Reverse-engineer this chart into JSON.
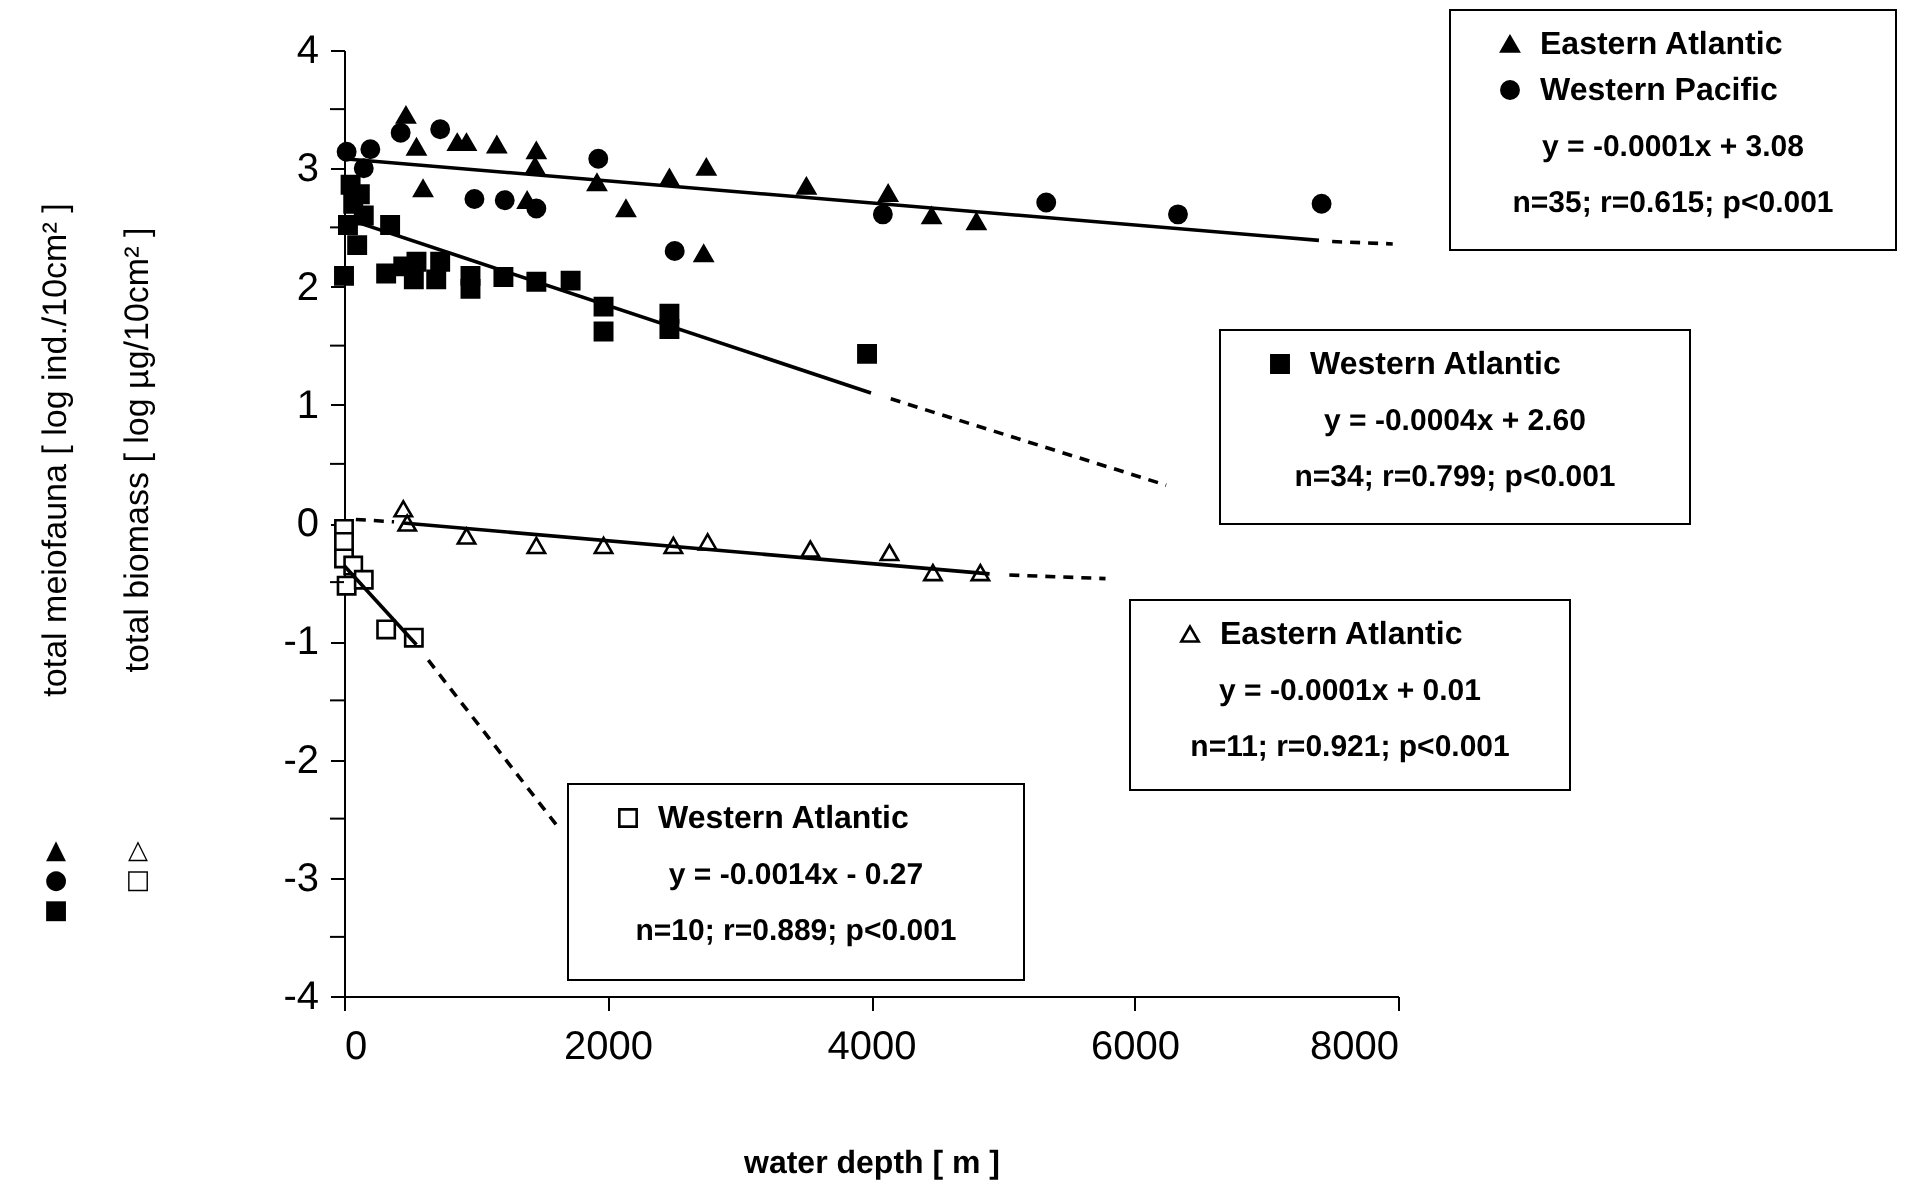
{
  "chart_data": {
    "type": "scatter",
    "xlabel": "water depth   [ m ]",
    "xlim": [
      0,
      8000
    ],
    "xticks": [
      0,
      2000,
      4000,
      6000,
      8000
    ],
    "ylim": [
      -4,
      4
    ],
    "yticks": [
      -4,
      {
        "value": -3.5,
        "label": null
      },
      -3,
      {
        "value": -2.5,
        "label": null
      },
      -2,
      {
        "value": -1.5,
        "label": null
      },
      -1,
      {
        "value": -0.5,
        "label": null
      },
      0,
      {
        "value": 0.5,
        "label": null
      },
      1,
      {
        "value": 1.5,
        "label": null
      },
      2,
      {
        "value": 2.5,
        "label": null
      },
      3,
      {
        "value": 3.5,
        "label": null
      },
      4
    ],
    "grid": false,
    "legend": "right",
    "series": [
      {
        "name": "Eastern Atlantic",
        "type": "scatter",
        "marker": "triangle",
        "color": "#000000",
        "x": [
          470,
          550,
          600,
          860,
          930,
          1160,
          1390,
          1450,
          1460,
          1920,
          2140,
          2470,
          2730,
          2750,
          3510,
          4130,
          4460,
          4800
        ],
        "values": [
          3.45,
          3.18,
          2.83,
          3.22,
          3.22,
          3.2,
          2.73,
          3.02,
          3.15,
          2.88,
          2.66,
          2.92,
          2.28,
          3.01,
          2.85,
          2.79,
          2.6,
          2.55
        ]
      },
      {
        "name": "Western Pacific",
        "type": "scatter",
        "marker": "circle",
        "color": "#000000",
        "x": [
          20,
          150,
          200,
          430,
          730,
          990,
          1220,
          1460,
          1930,
          2510,
          4090,
          5330,
          6330,
          7420
        ],
        "values": [
          3.14,
          3.0,
          3.16,
          3.3,
          3.33,
          2.74,
          2.73,
          2.66,
          3.08,
          2.3,
          2.61,
          2.71,
          2.61,
          2.7
        ]
      },
      {
        "name": "Western Atlantic",
        "type": "scatter",
        "marker": "square",
        "color": "#000000",
        "x": [
          0,
          30,
          50,
          70,
          100,
          120,
          150,
          320,
          350,
          450,
          530,
          550,
          700,
          730,
          960,
          960,
          1210,
          1460,
          1720,
          1970,
          1970,
          2470,
          2470,
          3970
        ],
        "values": [
          2.09,
          2.52,
          2.86,
          2.7,
          2.35,
          2.78,
          2.6,
          2.11,
          2.52,
          2.17,
          2.06,
          2.21,
          2.06,
          2.21,
          2.09,
          1.98,
          2.08,
          2.04,
          2.05,
          1.83,
          1.62,
          1.77,
          1.64,
          1.43
        ]
      },
      {
        "name": "Eastern Atlantic",
        "type": "scatter",
        "marker": "triangle",
        "color": "#ffffff",
        "x": [
          450,
          480,
          930,
          1460,
          1970,
          2500,
          2760,
          3540,
          4140,
          4470,
          4830
        ],
        "values": [
          0.12,
          0.0,
          -0.11,
          -0.19,
          -0.19,
          -0.19,
          -0.16,
          -0.22,
          -0.25,
          -0.42,
          -0.42
        ]
      },
      {
        "name": "Western Atlantic",
        "type": "scatter",
        "marker": "square",
        "color": "#ffffff",
        "x": [
          0,
          0,
          0,
          20,
          70,
          150,
          320,
          530
        ],
        "values": [
          -0.05,
          -0.16,
          -0.3,
          -0.53,
          -0.36,
          -0.48,
          -0.9,
          -0.97
        ]
      },
      {
        "type": "line",
        "line_style": "solid",
        "color": "#000000",
        "x": [
          0,
          7400
        ],
        "values": [
          3.08,
          2.39
        ]
      },
      {
        "type": "line",
        "line_style": "dashed",
        "color": "#000000",
        "x": [
          7500,
          7960
        ],
        "values": [
          2.38,
          2.36
        ]
      },
      {
        "type": "line",
        "line_style": "solid",
        "color": "#000000",
        "x": [
          0,
          4000
        ],
        "values": [
          2.58,
          1.1
        ]
      },
      {
        "type": "line",
        "line_style": "dashed",
        "color": "#000000",
        "x": [
          4150,
          6240
        ],
        "values": [
          1.05,
          0.32
        ]
      },
      {
        "type": "line",
        "line_style": "dashed",
        "color": "#000000",
        "x": [
          90,
          380
        ],
        "values": [
          0.03,
          0.01
        ]
      },
      {
        "type": "line",
        "line_style": "solid",
        "color": "#000000",
        "x": [
          450,
          4900
        ],
        "values": [
          0.0,
          -0.43
        ]
      },
      {
        "type": "line",
        "line_style": "dashed",
        "color": "#000000",
        "x": [
          5050,
          5780
        ],
        "values": [
          -0.44,
          -0.47
        ]
      },
      {
        "type": "line",
        "line_style": "solid",
        "color": "#000000",
        "x": [
          0,
          550
        ],
        "values": [
          -0.36,
          -1.03
        ]
      },
      {
        "type": "line",
        "line_style": "dashed",
        "color": "#000000",
        "x": [
          640,
          1610
        ],
        "values": [
          -1.16,
          -2.55
        ]
      }
    ],
    "annotations": [
      "y = -0.0001x + 3.08",
      "n=35; r=0.615; p<0.001",
      "y = -0.0004x + 2.60",
      "n=34; r=0.799; p<0.001",
      "y = -0.0001x + 0.01",
      "n=11; r=0.921; p<0.001",
      "y = -0.0014x - 0.27",
      "n=10; r=0.889; p<0.001",
      "total meiofauna   [ log ind./10cm² ]",
      "total biomass   [ log µg/10cm² ]",
      "▲",
      "●",
      "■",
      "△",
      "□"
    ]
  }
}
